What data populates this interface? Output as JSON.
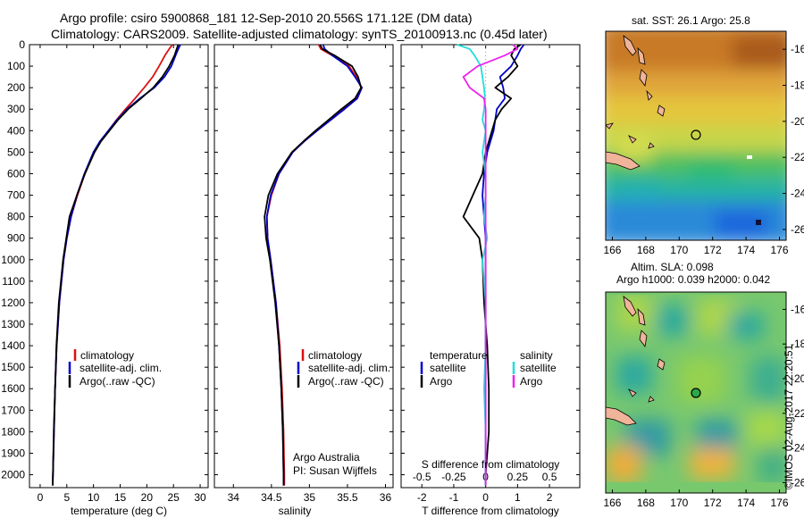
{
  "figure": {
    "title_line1": "Argo profile: csiro 5900868_181 12-Sep-2010 20.556S 171.12E (DM data)",
    "title_line2": "Climatology: CARS2009. Satellite-adjusted climatology: synTS_20100913.nc (0.45d later)",
    "stamp": "©IMOS 02-Aug-2017 22:20:51",
    "credit_line1": "Argo Australia",
    "credit_line2": "PI: Susan Wijffels",
    "colors": {
      "climatology": "#dd1111",
      "satellite": "#0000cc",
      "argo": "#000000",
      "sat_T": "#0000cc",
      "sat_S": "#22dddd",
      "argo_S": "#ee22ee"
    }
  },
  "chart_data": [
    {
      "type": "line",
      "name": "temperature",
      "xlabel": "temperature (deg C)",
      "ylabel": "",
      "xlim": [
        -2,
        31.5
      ],
      "ylim": [
        2060,
        0
      ],
      "xticks": [
        0,
        5,
        10,
        15,
        20,
        25,
        30
      ],
      "yticks": [
        0,
        100,
        200,
        300,
        400,
        500,
        600,
        700,
        800,
        900,
        1000,
        1100,
        1200,
        1300,
        1400,
        1500,
        1600,
        1700,
        1800,
        1900,
        2000
      ],
      "legend": [
        "climatology",
        "satellite-adj. clim.",
        "Argo(..raw -QC)"
      ],
      "depth": [
        0,
        20,
        50,
        100,
        150,
        200,
        250,
        300,
        350,
        400,
        450,
        500,
        600,
        700,
        800,
        900,
        1000,
        1200,
        1400,
        1600,
        1800,
        2000,
        2050
      ],
      "series": [
        {
          "name": "climatology",
          "values": [
            24.8,
            24.2,
            23.4,
            22.3,
            21.1,
            19.5,
            17.8,
            16.0,
            14.3,
            12.8,
            11.3,
            10.1,
            8.4,
            7.0,
            5.8,
            5.0,
            4.4,
            3.6,
            3.1,
            2.8,
            2.6,
            2.4,
            2.35
          ]
        },
        {
          "name": "satellite-adj. clim.",
          "values": [
            26.3,
            25.9,
            25.4,
            24.6,
            23.3,
            21.4,
            18.7,
            16.3,
            14.4,
            12.8,
            11.2,
            10.0,
            8.3,
            6.9,
            5.8,
            5.0,
            4.4,
            3.6,
            3.1,
            2.8,
            2.6,
            2.4,
            2.35
          ]
        },
        {
          "name": "Argo",
          "values": [
            25.9,
            25.6,
            25.2,
            24.2,
            22.9,
            21.2,
            18.9,
            16.5,
            14.6,
            13.0,
            11.4,
            10.2,
            8.4,
            6.9,
            5.5,
            4.9,
            4.3,
            3.5,
            3.05,
            2.8,
            2.55,
            2.4,
            2.35
          ]
        }
      ]
    },
    {
      "type": "line",
      "name": "salinity",
      "xlabel": "salinity",
      "xlim": [
        33.75,
        36.1
      ],
      "ylim": [
        2060,
        0
      ],
      "xticks": [
        34,
        34.5,
        35,
        35.5,
        36
      ],
      "legend": [
        "climatology",
        "satellite-adj. clim.",
        "Argo(..raw -QC)"
      ],
      "depth": [
        0,
        20,
        50,
        100,
        150,
        200,
        250,
        300,
        350,
        400,
        450,
        500,
        600,
        700,
        800,
        900,
        1000,
        1200,
        1400,
        1600,
        1800,
        2000,
        2050
      ],
      "series": [
        {
          "name": "climatology",
          "values": [
            35.12,
            35.15,
            35.3,
            35.52,
            35.62,
            35.68,
            35.62,
            35.45,
            35.28,
            35.1,
            34.93,
            34.78,
            34.6,
            34.5,
            34.44,
            34.45,
            34.49,
            34.56,
            34.61,
            34.64,
            34.66,
            34.67,
            34.67
          ]
        },
        {
          "name": "satellite-adj. clim.",
          "values": [
            35.18,
            35.2,
            35.3,
            35.5,
            35.6,
            35.69,
            35.63,
            35.46,
            35.28,
            35.1,
            34.93,
            34.78,
            34.6,
            34.49,
            34.44,
            34.45,
            34.49,
            34.56,
            34.6,
            34.63,
            34.65,
            34.66,
            34.66
          ]
        },
        {
          "name": "Argo",
          "values": [
            35.14,
            35.17,
            35.33,
            35.56,
            35.64,
            35.68,
            35.6,
            35.42,
            35.25,
            35.08,
            34.92,
            34.77,
            34.58,
            34.46,
            34.41,
            34.43,
            34.48,
            34.55,
            34.6,
            34.63,
            34.65,
            34.66,
            34.66
          ]
        }
      ]
    },
    {
      "type": "line",
      "name": "difference",
      "xlabel": "T difference from climatology",
      "xlabel2": "S difference from climatology",
      "xlim": [
        -2.65,
        2.95
      ],
      "ylim": [
        2060,
        0
      ],
      "xticks": [
        -2,
        -1,
        0,
        1,
        2
      ],
      "xticks_S": [
        -0.5,
        -0.25,
        0,
        0.25,
        0.5
      ],
      "legend_groups": [
        "temperature",
        "salinity"
      ],
      "legend": [
        "satellite",
        "Argo",
        "satellite",
        "Argo"
      ],
      "depth": [
        0,
        20,
        50,
        100,
        150,
        200,
        250,
        300,
        350,
        400,
        450,
        500,
        600,
        700,
        800,
        900,
        1000,
        1200,
        1400,
        1600,
        1800,
        2000,
        2050
      ],
      "series": [
        {
          "name": "T satellite",
          "values": [
            1.2,
            1.1,
            1.0,
            0.8,
            0.45,
            0.55,
            0.6,
            0.35,
            0.3,
            0.25,
            0.15,
            0.05,
            -0.05,
            -0.1,
            -0.05,
            0.0,
            0.0,
            0.0,
            0.0,
            0.0,
            0.0,
            0.0,
            0.0
          ]
        },
        {
          "name": "T Argo",
          "values": [
            1.1,
            0.9,
            0.8,
            1.0,
            0.7,
            0.3,
            0.8,
            0.5,
            0.3,
            0.2,
            0.1,
            0.0,
            -0.1,
            -0.4,
            -0.7,
            -0.2,
            -0.1,
            -0.05,
            0.05,
            0.1,
            0.1,
            0.0,
            0.0
          ]
        },
        {
          "name": "S satellite",
          "values": [
            -0.9,
            -0.5,
            -0.35,
            -0.15,
            -0.1,
            -0.05,
            -0.02,
            -0.05,
            -0.1,
            0.0,
            -0.05,
            -0.1,
            0.0,
            0.0,
            -0.05,
            0.05,
            -0.1,
            0.0,
            0.0,
            -0.05,
            0.0,
            0.0,
            0.0
          ]
        },
        {
          "name": "S Argo",
          "values": [
            0.85,
            1.0,
            0.6,
            -0.25,
            -0.7,
            -0.5,
            -0.05,
            0.0,
            0.0,
            0.0,
            0.0,
            0.0,
            0.0,
            0.0,
            0.0,
            0.0,
            0.0,
            0.0,
            0.0,
            0.0,
            0.0,
            0.0,
            0.0
          ]
        }
      ]
    },
    {
      "type": "heatmap",
      "name": "sst_map",
      "title": "sat. SST: 26.1  Argo: 25.8",
      "xlim": [
        165.6,
        176.4
      ],
      "ylim": [
        -26.6,
        -15.0
      ],
      "xticks": [
        166,
        168,
        170,
        172,
        174,
        176
      ],
      "yticks": [
        -16,
        -18,
        -20,
        -22,
        -24,
        -26
      ],
      "argo_position": [
        171.12,
        -20.556
      ]
    },
    {
      "type": "heatmap",
      "name": "sla_map",
      "title": "Altim. SLA: 0.098",
      "subtitle": "Argo h1000: 0.039 h2000: 0.042",
      "xlim": [
        165.6,
        176.4
      ],
      "ylim": [
        -26.6,
        -15.0
      ],
      "xticks": [
        166,
        168,
        170,
        172,
        174,
        176
      ],
      "yticks": [
        -16,
        -18,
        -20,
        -22,
        -24,
        -26
      ],
      "argo_position": [
        171.12,
        -20.556
      ]
    }
  ]
}
